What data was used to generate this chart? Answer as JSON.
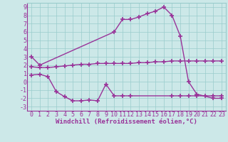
{
  "line1_x": [
    0,
    1,
    10,
    11,
    12,
    13,
    14,
    15,
    16,
    17,
    18,
    19,
    20,
    22,
    23
  ],
  "line1_y": [
    3.0,
    2.0,
    6.0,
    7.5,
    7.5,
    7.8,
    8.2,
    8.5,
    9.0,
    8.0,
    5.5,
    0.0,
    -1.5,
    -2.0,
    -2.0
  ],
  "line2_x": [
    0,
    1,
    2,
    3,
    4,
    5,
    6,
    7,
    8,
    9,
    10,
    11,
    12,
    13,
    14,
    15,
    16,
    17,
    18,
    19,
    20,
    21,
    22,
    23
  ],
  "line2_y": [
    1.8,
    1.7,
    1.7,
    1.8,
    1.9,
    2.0,
    2.1,
    2.1,
    2.2,
    2.2,
    2.2,
    2.2,
    2.2,
    2.3,
    2.3,
    2.4,
    2.4,
    2.5,
    2.5,
    2.5,
    2.5,
    2.5,
    2.5,
    2.5
  ],
  "line3_x": [
    0,
    1,
    2,
    3,
    4,
    5,
    6,
    7,
    8,
    9,
    10,
    11,
    12,
    17,
    18,
    19,
    20,
    21,
    22,
    23
  ],
  "line3_y": [
    0.8,
    0.9,
    0.6,
    -1.2,
    -1.8,
    -2.3,
    -2.3,
    -2.2,
    -2.3,
    -0.3,
    -1.7,
    -1.7,
    -1.7,
    -1.7,
    -1.7,
    -1.7,
    -1.7,
    -1.7,
    -1.7,
    -1.7
  ],
  "line_color": "#993399",
  "bg_color": "#cce8e8",
  "grid_color": "#99cccc",
  "xlabel": "Windchill (Refroidissement éolien,°C)",
  "xlim": [
    -0.5,
    23.5
  ],
  "ylim": [
    -3.5,
    9.5
  ],
  "yticks": [
    -3,
    -2,
    -1,
    0,
    1,
    2,
    3,
    4,
    5,
    6,
    7,
    8,
    9
  ],
  "xticks": [
    0,
    1,
    2,
    3,
    4,
    5,
    6,
    7,
    8,
    9,
    10,
    11,
    12,
    13,
    14,
    15,
    16,
    17,
    18,
    19,
    20,
    21,
    22,
    23
  ],
  "marker": "+",
  "markersize": 4,
  "linewidth": 1.0,
  "xlabel_fontsize": 6.5,
  "tick_fontsize": 6,
  "font_color": "#993399"
}
